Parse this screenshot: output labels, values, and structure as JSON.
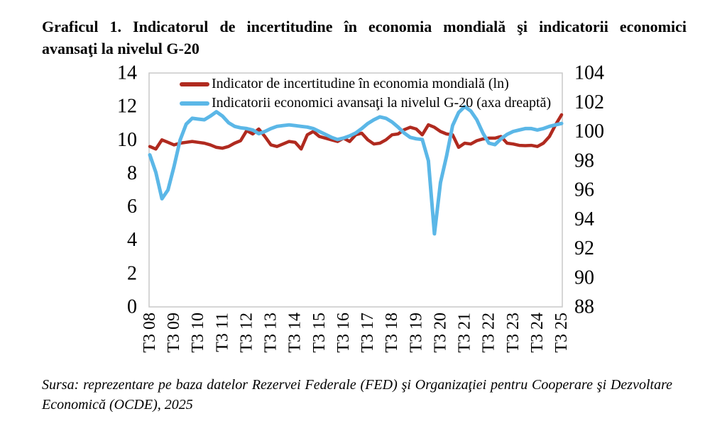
{
  "title": {
    "line1": "Graficul 1. Indicatorul de incertitudine în economia mondială şi indicatorii economici",
    "line2": "avansaţi la nivelul G-20"
  },
  "source": {
    "line1": "Sursa: reprezentare pe baza datelor Rezervei Federale (FED) şi Organizaţiei pentru Cooperare şi Dezvoltare",
    "line2": "Economică (OCDE), 2025"
  },
  "colors": {
    "uncertainty_line": "#b02a1f",
    "cli_line": "#5bb7e7",
    "plot_frame": "#c8c8c8",
    "text": "#000000",
    "background": "#ffffff"
  },
  "chart_data": {
    "type": "line",
    "title": "Graficul 1. Indicatorul de incertitudine în economia mondială şi indicatorii economici avansaţi la nivelul G-20",
    "x_start": "T3 2008",
    "x_end": "T3 2025",
    "x_freq": "quarterly",
    "grid": false,
    "legend_position": "top-inside",
    "x_tick_labels": [
      "T3 08",
      "T3 09",
      "T3 10",
      "T3 11",
      "T3 12",
      "T3 13",
      "T3 14",
      "T3 15",
      "T3 16",
      "T3 17",
      "T3 18",
      "T3 19",
      "T3 20",
      "T3 21",
      "T3 22",
      "T3 23",
      "T3 24",
      "T3 25"
    ],
    "left_axis": {
      "min": 0,
      "max": 14,
      "ticks": [
        14,
        12,
        10,
        8,
        6,
        4,
        2,
        0
      ]
    },
    "right_axis": {
      "min": 88,
      "max": 104,
      "ticks": [
        104,
        102,
        100,
        98,
        96,
        94,
        92,
        90,
        88
      ]
    },
    "series": [
      {
        "name": "Indicator de incertitudine în economia mondială (ln)",
        "axis": "left",
        "color": "#b02a1f",
        "values": [
          9.6,
          9.45,
          10.0,
          9.85,
          9.7,
          9.8,
          9.85,
          9.9,
          9.85,
          9.8,
          9.7,
          9.55,
          9.5,
          9.6,
          9.8,
          9.95,
          10.55,
          10.35,
          10.65,
          10.2,
          9.7,
          9.6,
          9.75,
          9.9,
          9.85,
          9.45,
          10.3,
          10.5,
          10.2,
          10.1,
          10.0,
          9.9,
          10.1,
          9.9,
          10.3,
          10.4,
          10.0,
          9.75,
          9.8,
          10.0,
          10.3,
          10.35,
          10.6,
          10.75,
          10.65,
          10.3,
          10.9,
          10.75,
          10.5,
          10.35,
          10.3,
          9.55,
          9.8,
          9.75,
          9.95,
          10.05,
          10.1,
          10.1,
          10.2,
          9.8,
          9.75,
          9.67,
          9.65,
          9.67,
          9.6,
          9.8,
          10.2,
          10.9,
          11.5
        ]
      },
      {
        "name": "Indicatorii economici avansaţi la nivelul G-20 (axa dreaptă)",
        "axis": "right",
        "color": "#5bb7e7",
        "values": [
          98.4,
          97.2,
          95.4,
          96.0,
          97.6,
          99.4,
          100.5,
          100.9,
          100.85,
          100.8,
          101.05,
          101.35,
          101.05,
          100.6,
          100.35,
          100.25,
          100.2,
          100.1,
          99.85,
          100.0,
          100.2,
          100.35,
          100.4,
          100.45,
          100.4,
          100.35,
          100.3,
          100.2,
          100.0,
          99.8,
          99.6,
          99.45,
          99.55,
          99.7,
          99.9,
          100.2,
          100.55,
          100.8,
          101.0,
          100.9,
          100.65,
          100.3,
          99.9,
          99.6,
          99.5,
          99.45,
          98.0,
          93.0,
          96.5,
          98.3,
          100.4,
          101.3,
          101.7,
          101.4,
          100.8,
          99.9,
          99.2,
          99.1,
          99.5,
          99.8,
          100.0,
          100.1,
          100.2,
          100.2,
          100.1,
          100.2,
          100.35,
          100.45,
          100.55
        ]
      }
    ]
  }
}
